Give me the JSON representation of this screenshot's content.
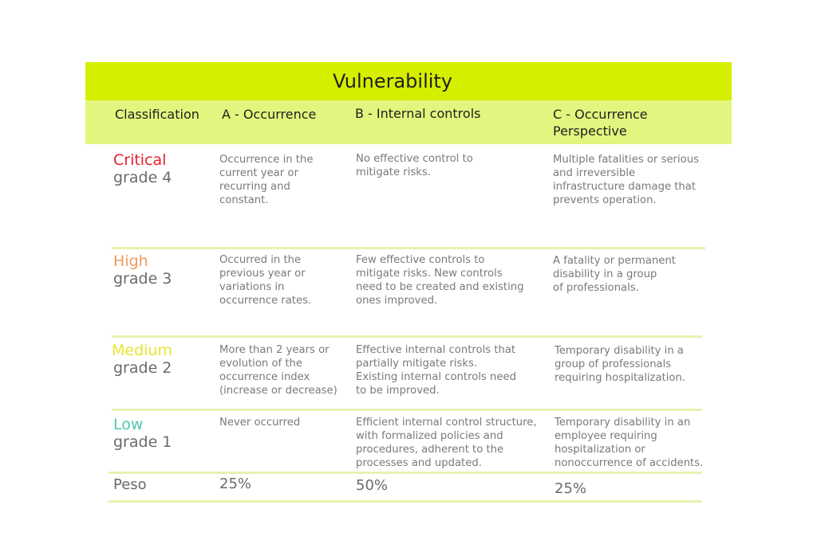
{
  "table": {
    "title": "Vulnerability",
    "headers": {
      "classification": "Classification",
      "a": "A - Occurrence",
      "b": "B - Internal controls",
      "c_line1": "C - Occurrence",
      "c_line2": "Perspective"
    },
    "rows": [
      {
        "level": "Critical",
        "grade": "grade 4",
        "color": "#e8202a",
        "a": [
          "Occurrence in the",
          "current year or",
          "recurring and",
          "constant."
        ],
        "b": [
          "No effective control to",
          "mitigate risks."
        ],
        "c": [
          "Multiple fatalities or serious",
          "and irreversible",
          "infrastructure damage that",
          "prevents operation."
        ]
      },
      {
        "level": "High",
        "grade": "grade 3",
        "color": "#ef9a5c",
        "a": [
          "Occurred in the",
          "previous year or",
          "variations in",
          "occurrence rates."
        ],
        "b": [
          "Few effective controls to",
          "mitigate risks. New controls",
          "need to be created and existing",
          "ones improved."
        ],
        "c": [
          "A fatality or permanent",
          "disability in a group",
          "of professionals."
        ]
      },
      {
        "level": "Medium",
        "grade": "grade 2",
        "color": "#e6e632",
        "a": [
          "More than 2 years or",
          "evolution of the",
          "occurrence index",
          "(increase or decrease)"
        ],
        "b": [
          "Effective internal controls that",
          "partially mitigate risks.",
          "Existing internal controls need",
          "to be improved."
        ],
        "c": [
          "Temporary disability in a",
          "group of professionals",
          "requiring hospitalization."
        ]
      },
      {
        "level": "Low",
        "grade": "grade 1",
        "color": "#4fc7ad",
        "a": [
          "Never occurred"
        ],
        "b": [
          "Efficient internal control structure,",
          "with formalized policies and",
          "procedures, adherent to the",
          "processes and updated."
        ],
        "c": [
          "Temporary disability in an",
          "employee requiring",
          "hospitalization or",
          "nonoccurrence of accidents."
        ]
      }
    ],
    "peso": {
      "label": "Peso",
      "a": "25%",
      "b": "50%",
      "c": "25%"
    },
    "colors": {
      "title_bg": "#d6ef00",
      "header_bg": "#e3f57e",
      "separator": "#e6f3b0"
    }
  }
}
